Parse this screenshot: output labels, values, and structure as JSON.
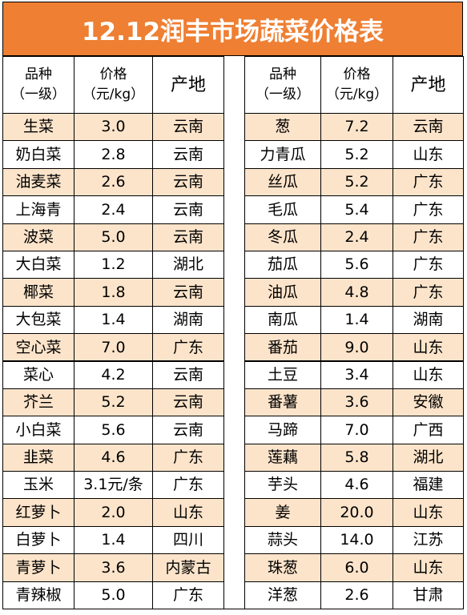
{
  "title": "12.12润丰市场蔬菜价格表",
  "header": [
    [
      "品种",
      "（一级）"
    ],
    [
      "价格",
      "（元/kg）"
    ],
    [
      "产地"
    ]
  ],
  "left": [
    [
      "生菜",
      "3.0",
      "云南"
    ],
    [
      "奶白菜",
      "2.8",
      "云南"
    ],
    [
      "油麦菜",
      "2.6",
      "云南"
    ],
    [
      "上海青",
      "2.4",
      "云南"
    ],
    [
      "波菜",
      "5.0",
      "云南"
    ],
    [
      "大白菜",
      "1.2",
      "湖北"
    ],
    [
      "椰菜",
      "1.8",
      "云南"
    ],
    [
      "大包菜",
      "1.4",
      "湖南"
    ],
    [
      "空心菜",
      "7.0",
      "广东"
    ],
    [
      "菜心",
      "4.2",
      "云南"
    ],
    [
      "芥兰",
      "5.2",
      "云南"
    ],
    [
      "小白菜",
      "5.6",
      "云南"
    ],
    [
      "韭菜",
      "4.6",
      "广东"
    ],
    [
      "玉米",
      "3.1元/条",
      "广东"
    ],
    [
      "红萝卜",
      "2.0",
      "山东"
    ],
    [
      "白萝卜",
      "1.4",
      "四川"
    ],
    [
      "青萝卜",
      "3.6",
      "内蒙古"
    ],
    [
      "青辣椒",
      "5.0",
      "广东"
    ]
  ],
  "right": [
    [
      "葱",
      "7.2",
      "云南"
    ],
    [
      "力青瓜",
      "5.2",
      "山东"
    ],
    [
      "丝瓜",
      "5.2",
      "广东"
    ],
    [
      "毛瓜",
      "5.4",
      "广东"
    ],
    [
      "冬瓜",
      "2.4",
      "广东"
    ],
    [
      "茄瓜",
      "5.6",
      "广东"
    ],
    [
      "油瓜",
      "4.8",
      "广东"
    ],
    [
      "南瓜",
      "1.4",
      "湖南"
    ],
    [
      "番茄",
      "9.0",
      "山东"
    ],
    [
      "土豆",
      "3.4",
      "山东"
    ],
    [
      "番薯",
      "3.6",
      "安徽"
    ],
    [
      "马蹄",
      "7.0",
      "广西"
    ],
    [
      "莲藕",
      "5.8",
      "湖北"
    ],
    [
      "芋头",
      "4.6",
      "福建"
    ],
    [
      "姜",
      "20.0",
      "山东"
    ],
    [
      "蒜头",
      "14.0",
      "江苏"
    ],
    [
      "珠葱",
      "6.0",
      "山东"
    ],
    [
      "洋葱",
      "2.6",
      "甘肃"
    ]
  ]
}
